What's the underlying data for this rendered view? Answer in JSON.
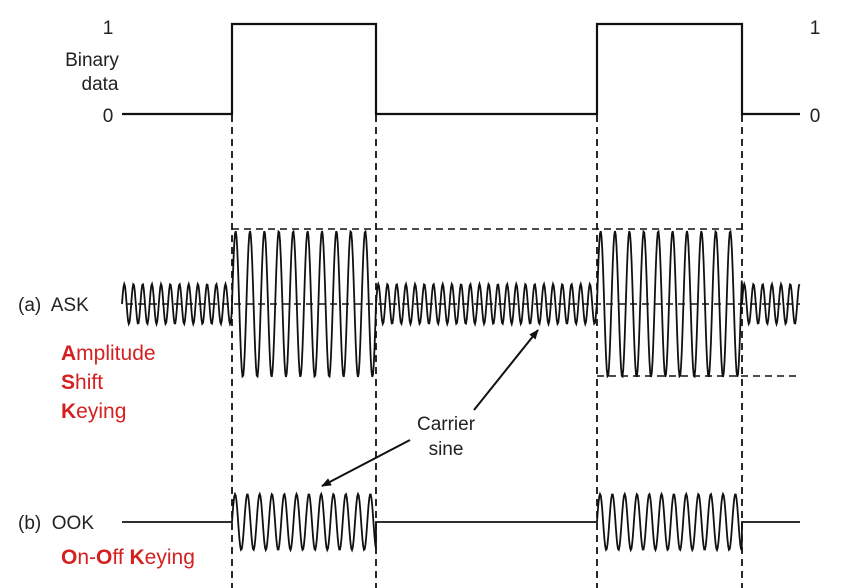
{
  "binary": {
    "label_line1": "Binary",
    "label_line2": "data",
    "one": "1",
    "zero": "0",
    "one_right": "1",
    "zero_right": "0"
  },
  "ask": {
    "label": "(a)  ASK",
    "expansion": [
      {
        "initial": "A",
        "rest": "mplitude"
      },
      {
        "initial": "S",
        "rest": "hift"
      },
      {
        "initial": "K",
        "rest": "eying"
      }
    ]
  },
  "ook": {
    "label": "(b)  OOK",
    "expansion": {
      "i1": "O",
      "r1": "n-",
      "i2": "O",
      "r2": "ff ",
      "i3": "K",
      "r3": "eying"
    }
  },
  "annotation": {
    "line1": "Carrier",
    "line2": "sine"
  },
  "signal": {
    "bits": [
      0,
      1,
      0,
      1,
      0
    ]
  },
  "colors": {
    "ink": "#111111",
    "accent": "#d42020"
  }
}
